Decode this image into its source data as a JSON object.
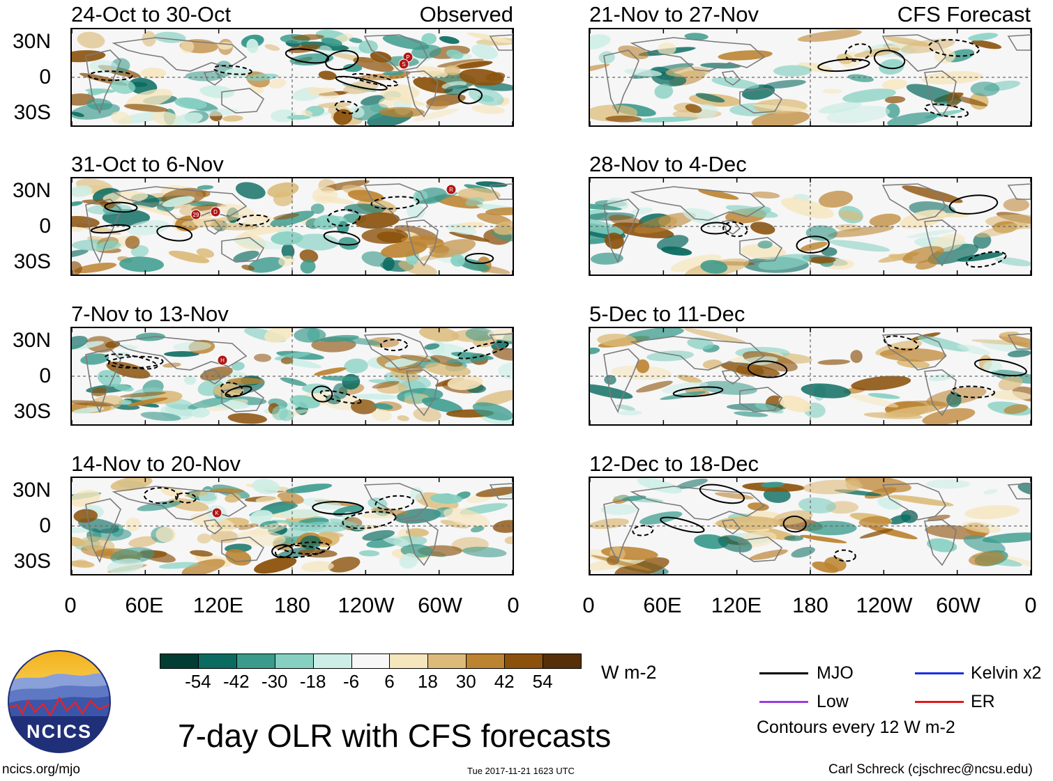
{
  "title": "7-day OLR with CFS forecasts",
  "site": "ncics.org/mjo",
  "timestamp": "Tue 2017-11-21 1623 UTC",
  "credit": "Carl Schreck (cjschrec@ncsu.edu)",
  "logo_text": "NCICS",
  "observed_label": "Observed",
  "forecast_label": "CFS Forecast",
  "lat_labels": [
    "30N",
    "0",
    "30S"
  ],
  "lon_labels": [
    "0",
    "60E",
    "120E",
    "180",
    "120W",
    "60W",
    "0"
  ],
  "panels_left": [
    {
      "title": "24-Oct to 30-Oct"
    },
    {
      "title": "31-Oct to 6-Nov"
    },
    {
      "title": "7-Nov to 13-Nov"
    },
    {
      "title": "14-Nov to 20-Nov"
    }
  ],
  "panels_right": [
    {
      "title": "21-Nov to 27-Nov"
    },
    {
      "title": "28-Nov to 4-Dec"
    },
    {
      "title": "5-Dec to 11-Dec"
    },
    {
      "title": "12-Dec to 18-Dec"
    }
  ],
  "colorbar": {
    "units": "W m-2",
    "labels": [
      "-54",
      "-42",
      "-30",
      "-18",
      "-6",
      "6",
      "18",
      "30",
      "42",
      "54"
    ],
    "colors": [
      "#013d33",
      "#0b6b60",
      "#3a9a8c",
      "#86d0c2",
      "#cdeee6",
      "#f7f7f7",
      "#f6e6be",
      "#dcbb7a",
      "#bc8330",
      "#8c520c",
      "#553008"
    ]
  },
  "legend": {
    "items": [
      {
        "label": "MJO",
        "color": "#000000"
      },
      {
        "label": "Kelvin x2",
        "color": "#1a2ee0"
      },
      {
        "label": "Low",
        "color": "#9b3ce0"
      },
      {
        "label": "ER",
        "color": "#e01a1a"
      }
    ],
    "note": "Contours every 12 W m-2"
  },
  "storm_markers": [
    {
      "panel": 0,
      "labels": [
        "P",
        "S"
      ]
    },
    {
      "panel": 1,
      "labels": [
        "29",
        "D",
        "R"
      ]
    },
    {
      "panel": 2,
      "labels": [
        "H"
      ]
    },
    {
      "panel": 3,
      "labels": [
        "K"
      ]
    }
  ]
}
